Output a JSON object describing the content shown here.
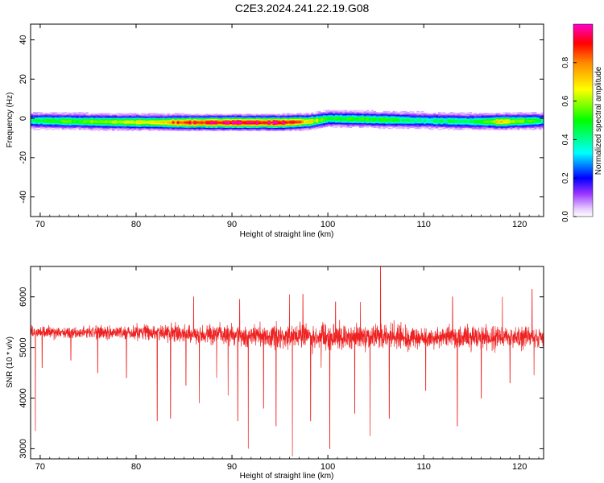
{
  "title": "C2E3.2024.241.22.19.G08",
  "chart_data": [
    {
      "type": "heatmap",
      "xlabel": "Height of straight line (km)",
      "ylabel": "Frequency (Hz)",
      "xlim": [
        69,
        122.5
      ],
      "ylim": [
        -50,
        48
      ],
      "xticks": [
        70,
        80,
        90,
        100,
        110,
        120
      ],
      "yticks": [
        -40,
        -20,
        0,
        20,
        40
      ],
      "grid": false,
      "band": {
        "description_points": [
          {
            "x": 69,
            "center": -1.0,
            "peak": 0.45
          },
          {
            "x": 75,
            "center": -1.5,
            "peak": 0.55
          },
          {
            "x": 80,
            "center": -1.8,
            "peak": 0.65
          },
          {
            "x": 85,
            "center": -2.0,
            "peak": 0.85
          },
          {
            "x": 90,
            "center": -2.0,
            "peak": 0.98
          },
          {
            "x": 95,
            "center": -2.0,
            "peak": 0.95
          },
          {
            "x": 98,
            "center": -1.5,
            "peak": 0.7
          },
          {
            "x": 100,
            "center": 0.0,
            "peak": 0.45
          },
          {
            "x": 105,
            "center": -0.5,
            "peak": 0.5
          },
          {
            "x": 110,
            "center": -1.0,
            "peak": 0.4
          },
          {
            "x": 115,
            "center": -1.5,
            "peak": 0.45
          },
          {
            "x": 118,
            "center": -1.5,
            "peak": 0.7
          },
          {
            "x": 122.5,
            "center": -1.0,
            "peak": 0.4
          }
        ]
      },
      "colorbar": {
        "label": "Normalized spectral amplitude",
        "range": [
          0,
          1
        ],
        "ticks": [
          0.0,
          0.2,
          0.4,
          0.6,
          0.8
        ],
        "tick_labels": [
          "0.0",
          "0.2",
          "0.4",
          "0.6",
          "0.8"
        ]
      }
    },
    {
      "type": "line",
      "xlabel": "Height of straight line (km)",
      "ylabel": "SNR (10 * v/v)",
      "xlim": [
        69,
        122.5
      ],
      "ylim": [
        2800,
        6600
      ],
      "xticks": [
        70,
        80,
        90,
        100,
        110,
        120
      ],
      "yticks": [
        3000,
        4000,
        5000,
        6000
      ],
      "grid": false,
      "series": [
        {
          "color": "#ee2222",
          "baseline": [
            [
              69,
              5300
            ],
            [
              80,
              5300
            ],
            [
              90,
              5250
            ],
            [
              100,
              5200
            ],
            [
              110,
              5200
            ],
            [
              122.5,
              5200
            ]
          ],
          "noise_envelope": [
            [
              69,
              150
            ],
            [
              80,
              200
            ],
            [
              90,
              300
            ],
            [
              100,
              380
            ],
            [
              110,
              330
            ],
            [
              122.5,
              300
            ]
          ],
          "dips": [
            [
              69.5,
              3350
            ],
            [
              70.2,
              4600
            ],
            [
              73.2,
              4750
            ],
            [
              76.0,
              4500
            ],
            [
              79.0,
              4400
            ],
            [
              82.2,
              3550
            ],
            [
              83.6,
              3600
            ],
            [
              85.2,
              4250
            ],
            [
              86.6,
              3900
            ],
            [
              88.4,
              4400
            ],
            [
              89.6,
              4050
            ],
            [
              90.6,
              3550
            ],
            [
              91.7,
              3000
            ],
            [
              93.3,
              3800
            ],
            [
              94.6,
              3450
            ],
            [
              96.3,
              2850
            ],
            [
              97.4,
              3300
            ],
            [
              98.2,
              3550
            ],
            [
              99.3,
              4600
            ],
            [
              100.2,
              3000
            ],
            [
              100.8,
              2900
            ],
            [
              102.8,
              3700
            ],
            [
              104.4,
              3250
            ],
            [
              106.4,
              3600
            ],
            [
              110.2,
              4150
            ],
            [
              113.5,
              3450
            ],
            [
              116.0,
              4000
            ],
            [
              119.0,
              4300
            ],
            [
              121.5,
              4450
            ]
          ],
          "spikes": [
            [
              86.0,
              6000
            ],
            [
              90.8,
              5950
            ],
            [
              96.0,
              6050
            ],
            [
              97.4,
              6050
            ],
            [
              100.8,
              5900
            ],
            [
              103.4,
              5900
            ],
            [
              105.5,
              6600
            ],
            [
              113.0,
              6000
            ],
            [
              118.2,
              6000
            ],
            [
              121.3,
              6150
            ]
          ]
        }
      ]
    }
  ]
}
